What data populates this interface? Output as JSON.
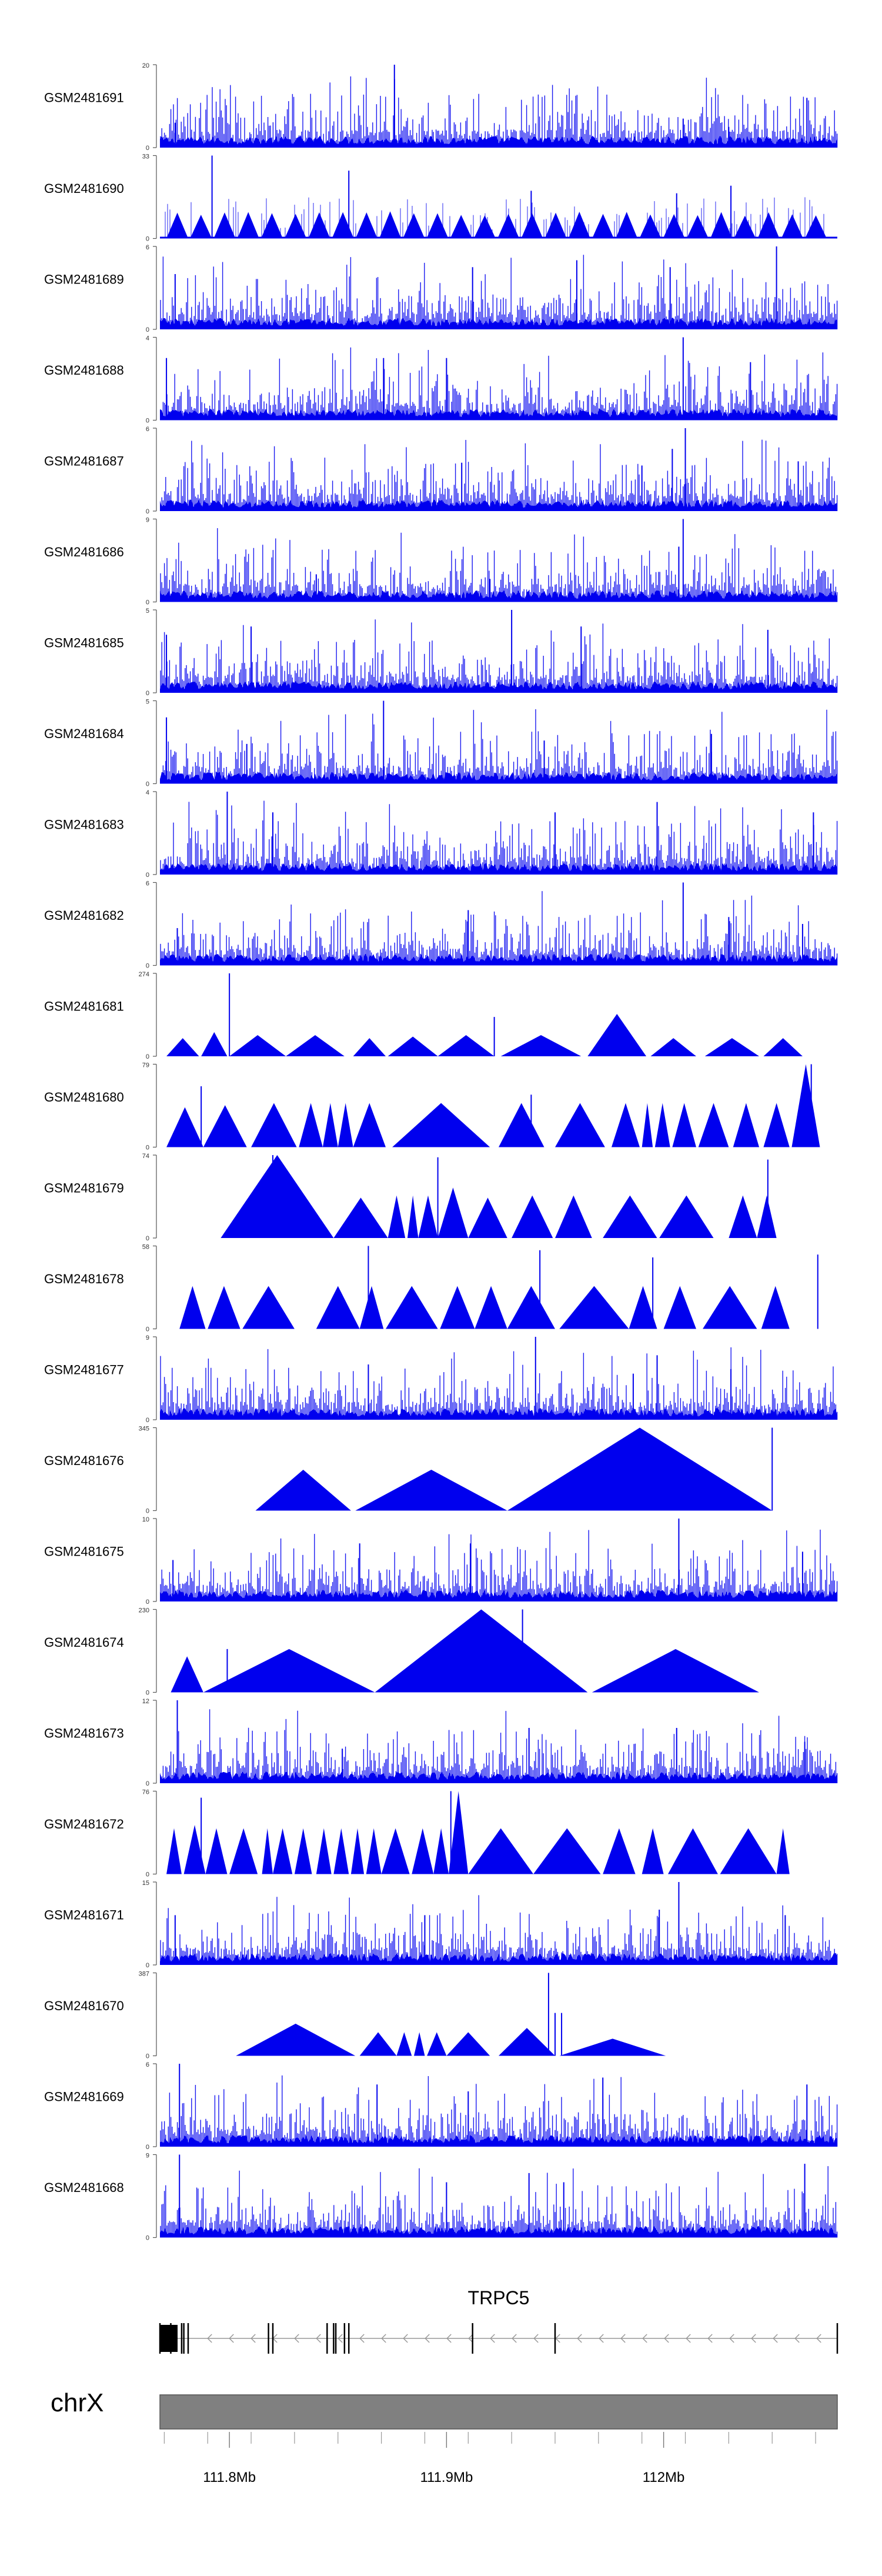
{
  "chart_data": {
    "type": "area",
    "title": "",
    "xlabel": "",
    "ylabel": "",
    "xlim": [
      111.768,
      112.08
    ],
    "ymin": 0,
    "tracks": [
      {
        "name": "GSM2481691",
        "ymax": 20,
        "ymax_label": "20",
        "pattern": "dense",
        "peaks": [
          [
            111.876,
            20
          ],
          [
            112.066,
            12
          ],
          [
            112.009,
            7
          ],
          [
            111.775,
            6
          ],
          [
            112.03,
            5
          ]
        ]
      },
      {
        "name": "GSM2481690",
        "ymax": 33,
        "ymax_label": "33",
        "pattern": "triangles",
        "tri_count": 28,
        "tri_height": 0.3,
        "peaks": [
          [
            111.792,
            33
          ],
          [
            112.031,
            21
          ],
          [
            111.855,
            27
          ],
          [
            111.939,
            19
          ],
          [
            112.006,
            18
          ]
        ]
      },
      {
        "name": "GSM2481689",
        "ymax": 6,
        "ymax_label": "6",
        "pattern": "dense",
        "peaks": [
          [
            112.052,
            6
          ],
          [
            111.96,
            5
          ],
          [
            111.912,
            4.5
          ],
          [
            111.775,
            4
          ],
          [
            112.003,
            4.5
          ]
        ]
      },
      {
        "name": "GSM2481688",
        "ymax": 4,
        "ymax_label": "4",
        "pattern": "dense",
        "peaks": [
          [
            112.009,
            4
          ],
          [
            111.871,
            3
          ],
          [
            111.9,
            3
          ],
          [
            111.771,
            3
          ],
          [
            112.04,
            2.8
          ]
        ]
      },
      {
        "name": "GSM2481687",
        "ymax": 6,
        "ymax_label": "6",
        "pattern": "dense",
        "peaks": [
          [
            112.01,
            6
          ],
          [
            112.004,
            4.5
          ],
          [
            111.907,
            3.5
          ],
          [
            111.99,
            3.3
          ],
          [
            112.062,
            3.6
          ]
        ]
      },
      {
        "name": "GSM2481686",
        "ymax": 9,
        "ymax_label": "9",
        "pattern": "dense",
        "peaks": [
          [
            112.009,
            9
          ],
          [
            112.007,
            6
          ],
          [
            111.84,
            3
          ],
          [
            111.92,
            2.5
          ],
          [
            112.077,
            2
          ]
        ]
      },
      {
        "name": "GSM2481685",
        "ymax": 5,
        "ymax_label": "5",
        "pattern": "dense",
        "peaks": [
          [
            111.93,
            5
          ],
          [
            111.962,
            4
          ],
          [
            111.81,
            4
          ],
          [
            112.048,
            3.8
          ],
          [
            111.771,
            3.5
          ]
        ]
      },
      {
        "name": "GSM2481684",
        "ymax": 5,
        "ymax_label": "5",
        "pattern": "dense",
        "peaks": [
          [
            111.871,
            5
          ],
          [
            111.771,
            4
          ],
          [
            112.022,
            3
          ],
          [
            111.945,
            2.6
          ],
          [
            111.808,
            2.4
          ]
        ]
      },
      {
        "name": "GSM2481683",
        "ymax": 4,
        "ymax_label": "4",
        "pattern": "dense",
        "peaks": [
          [
            111.799,
            4
          ],
          [
            111.997,
            3.5
          ],
          [
            111.82,
            3
          ],
          [
            111.95,
            3
          ],
          [
            112.069,
            3
          ]
        ]
      },
      {
        "name": "GSM2481682",
        "ymax": 6,
        "ymax_label": "6",
        "pattern": "dense",
        "peaks": [
          [
            112.009,
            6
          ],
          [
            111.91,
            4
          ],
          [
            112.03,
            3.5
          ],
          [
            112.064,
            3
          ],
          [
            111.776,
            2.7
          ]
        ]
      },
      {
        "name": "GSM2481681",
        "ymax": 274,
        "ymax_label": "274",
        "pattern": "segments",
        "segments": [
          [
            111.771,
            111.786,
            60
          ],
          [
            111.787,
            111.799,
            80
          ],
          [
            111.8,
            111.826,
            70
          ],
          [
            111.826,
            111.853,
            70
          ],
          [
            111.857,
            111.872,
            60
          ],
          [
            111.873,
            111.896,
            65
          ],
          [
            111.896,
            111.922,
            70
          ],
          [
            111.925,
            111.962,
            70
          ],
          [
            111.965,
            111.992,
            140
          ],
          [
            111.994,
            112.015,
            60
          ],
          [
            112.019,
            112.044,
            60
          ],
          [
            112.046,
            112.064,
            60
          ]
        ],
        "peaks": [
          [
            111.8,
            274
          ],
          [
            111.922,
            130
          ]
        ]
      },
      {
        "name": "GSM2481680",
        "ymax": 79,
        "ymax_label": "79",
        "pattern": "segments",
        "segments": [
          [
            111.771,
            111.788,
            38
          ],
          [
            111.788,
            111.808,
            40
          ],
          [
            111.81,
            111.831,
            42
          ],
          [
            111.832,
            111.843,
            42
          ],
          [
            111.843,
            111.85,
            42
          ],
          [
            111.85,
            111.857,
            42
          ],
          [
            111.857,
            111.872,
            42
          ],
          [
            111.875,
            111.92,
            42
          ],
          [
            111.924,
            111.945,
            42
          ],
          [
            111.95,
            111.973,
            42
          ],
          [
            111.976,
            111.989,
            42
          ],
          [
            111.99,
            111.995,
            42
          ],
          [
            111.996,
            112.003,
            42
          ],
          [
            112.004,
            112.015,
            42
          ],
          [
            112.016,
            112.03,
            42
          ],
          [
            112.032,
            112.044,
            42
          ],
          [
            112.046,
            112.058,
            42
          ],
          [
            112.059,
            112.072,
            79
          ]
        ],
        "peaks": [
          [
            111.787,
            58
          ],
          [
            111.939,
            50
          ],
          [
            112.068,
            79
          ]
        ]
      },
      {
        "name": "GSM2481679",
        "ymax": 74,
        "ymax_label": "74",
        "pattern": "segments",
        "segments": [
          [
            111.796,
            111.848,
            74
          ],
          [
            111.848,
            111.873,
            36
          ],
          [
            111.873,
            111.881,
            38
          ],
          [
            111.882,
            111.887,
            38
          ],
          [
            111.887,
            111.896,
            38
          ],
          [
            111.896,
            111.91,
            45
          ],
          [
            111.91,
            111.928,
            36
          ],
          [
            111.93,
            111.949,
            38
          ],
          [
            111.95,
            111.967,
            38
          ],
          [
            111.972,
            111.997,
            38
          ],
          [
            111.998,
            112.023,
            38
          ],
          [
            112.03,
            112.043,
            38
          ],
          [
            112.043,
            112.052,
            38
          ]
        ],
        "peaks": [
          [
            111.82,
            74
          ],
          [
            111.896,
            72
          ],
          [
            112.048,
            70
          ]
        ]
      },
      {
        "name": "GSM2481678",
        "ymax": 58,
        "ymax_label": "58",
        "pattern": "segments",
        "segments": [
          [
            111.777,
            111.789,
            30
          ],
          [
            111.79,
            111.805,
            30
          ],
          [
            111.806,
            111.83,
            30
          ],
          [
            111.84,
            111.86,
            30
          ],
          [
            111.86,
            111.871,
            30
          ],
          [
            111.872,
            111.896,
            30
          ],
          [
            111.897,
            111.913,
            30
          ],
          [
            111.913,
            111.928,
            30
          ],
          [
            111.928,
            111.95,
            30
          ],
          [
            111.952,
            111.984,
            30
          ],
          [
            111.984,
            111.997,
            30
          ],
          [
            112.0,
            112.015,
            30
          ],
          [
            112.018,
            112.043,
            30
          ],
          [
            112.045,
            112.058,
            30
          ]
        ],
        "peaks": [
          [
            111.864,
            58
          ],
          [
            111.943,
            55
          ],
          [
            111.995,
            50
          ],
          [
            112.071,
            52
          ]
        ]
      },
      {
        "name": "GSM2481677",
        "ymax": 9,
        "ymax_label": "9",
        "pattern": "dense",
        "peaks": [
          [
            111.941,
            9
          ],
          [
            111.864,
            6
          ],
          [
            111.997,
            7
          ],
          [
            112.031,
            5.5
          ],
          [
            111.986,
            5
          ]
        ]
      },
      {
        "name": "GSM2481676",
        "ymax": 345,
        "ymax_label": "345",
        "pattern": "segments",
        "segments": [
          [
            111.812,
            111.856,
            170
          ],
          [
            111.858,
            111.928,
            170
          ],
          [
            111.928,
            112.05,
            345
          ]
        ],
        "peaks": [
          [
            112.05,
            345
          ]
        ]
      },
      {
        "name": "GSM2481675",
        "ymax": 10,
        "ymax_label": "10",
        "pattern": "dense",
        "peaks": [
          [
            112.007,
            10
          ],
          [
            111.86,
            7
          ],
          [
            111.911,
            7
          ],
          [
            112.064,
            6
          ],
          [
            111.774,
            5
          ]
        ]
      },
      {
        "name": "GSM2481674",
        "ymax": 230,
        "ymax_label": "230",
        "pattern": "segments",
        "segments": [
          [
            111.773,
            111.788,
            100
          ],
          [
            111.788,
            111.867,
            120
          ],
          [
            111.867,
            111.965,
            230
          ],
          [
            111.967,
            112.044,
            120
          ]
        ],
        "peaks": [
          [
            111.799,
            120
          ],
          [
            111.935,
            230
          ]
        ]
      },
      {
        "name": "GSM2481673",
        "ymax": 12,
        "ymax_label": "12",
        "pattern": "dense",
        "peaks": [
          [
            111.776,
            12
          ],
          [
            111.938,
            8
          ],
          [
            112.006,
            8
          ],
          [
            111.852,
            5
          ],
          [
            112.065,
            6
          ]
        ]
      },
      {
        "name": "GSM2481672",
        "ymax": 76,
        "ymax_label": "76",
        "pattern": "segments",
        "segments": [
          [
            111.771,
            111.778,
            42
          ],
          [
            111.779,
            111.789,
            45
          ],
          [
            111.789,
            111.799,
            42
          ],
          [
            111.8,
            111.813,
            42
          ],
          [
            111.815,
            111.82,
            42
          ],
          [
            111.82,
            111.829,
            42
          ],
          [
            111.83,
            111.838,
            42
          ],
          [
            111.84,
            111.847,
            42
          ],
          [
            111.848,
            111.855,
            42
          ],
          [
            111.856,
            111.862,
            42
          ],
          [
            111.863,
            111.87,
            42
          ],
          [
            111.87,
            111.883,
            42
          ],
          [
            111.884,
            111.894,
            42
          ],
          [
            111.894,
            111.901,
            42
          ],
          [
            111.901,
            111.91,
            76
          ],
          [
            111.91,
            111.94,
            42
          ],
          [
            111.94,
            111.971,
            42
          ],
          [
            111.972,
            111.987,
            42
          ],
          [
            111.99,
            112.0,
            42
          ],
          [
            112.002,
            112.025,
            42
          ],
          [
            112.026,
            112.052,
            42
          ],
          [
            112.052,
            112.058,
            42
          ]
        ],
        "peaks": [
          [
            111.787,
            70
          ],
          [
            111.902,
            76
          ]
        ]
      },
      {
        "name": "GSM2481671",
        "ymax": 15,
        "ymax_label": "15",
        "pattern": "dense",
        "peaks": [
          [
            112.007,
            15
          ],
          [
            111.89,
            9
          ],
          [
            111.998,
            10
          ],
          [
            111.775,
            9
          ],
          [
            112.056,
            9
          ]
        ]
      },
      {
        "name": "GSM2481670",
        "ymax": 387,
        "ymax_label": "387",
        "pattern": "segments",
        "segments": [
          [
            111.803,
            111.858,
            150
          ],
          [
            111.86,
            111.877,
            110
          ],
          [
            111.877,
            111.884,
            110
          ],
          [
            111.885,
            111.89,
            110
          ],
          [
            111.891,
            111.9,
            110
          ],
          [
            111.9,
            111.92,
            110
          ],
          [
            111.924,
            111.95,
            130
          ],
          [
            111.952,
            112.001,
            80
          ]
        ],
        "peaks": [
          [
            111.947,
            387
          ],
          [
            111.95,
            200
          ],
          [
            111.953,
            200
          ]
        ]
      },
      {
        "name": "GSM2481669",
        "ymax": 6,
        "ymax_label": "6",
        "pattern": "dense",
        "peaks": [
          [
            111.777,
            6
          ],
          [
            111.972,
            5
          ],
          [
            111.868,
            4.5
          ],
          [
            112.066,
            4.5
          ],
          [
            111.91,
            4
          ]
        ]
      },
      {
        "name": "GSM2481668",
        "ymax": 9,
        "ymax_label": "9",
        "pattern": "dense",
        "peaks": [
          [
            111.777,
            9
          ],
          [
            111.938,
            7
          ],
          [
            112.065,
            8
          ],
          [
            111.954,
            6
          ],
          [
            111.9,
            6
          ]
        ]
      }
    ],
    "gene": {
      "name": "TRPC5",
      "start": 111.768,
      "end": 112.08,
      "strand": "-",
      "exons": [
        111.768,
        111.773,
        111.778,
        111.779,
        111.781,
        111.818,
        111.82,
        111.845,
        111.848,
        111.849,
        111.853,
        111.855,
        111.912,
        111.95,
        112.08
      ]
    },
    "ideogram": {
      "chrom": "chrX",
      "ticks": [
        {
          "value": 111.8,
          "label": "111.8Mb"
        },
        {
          "value": 111.9,
          "label": "111.9Mb"
        },
        {
          "value": 112.0,
          "label": "112Mb"
        }
      ]
    },
    "colors": {
      "fill": "#0000ee",
      "axis": "#555555",
      "ideogram": "#808080",
      "ideogram_edge": "#555555",
      "gene": "#000000"
    }
  }
}
